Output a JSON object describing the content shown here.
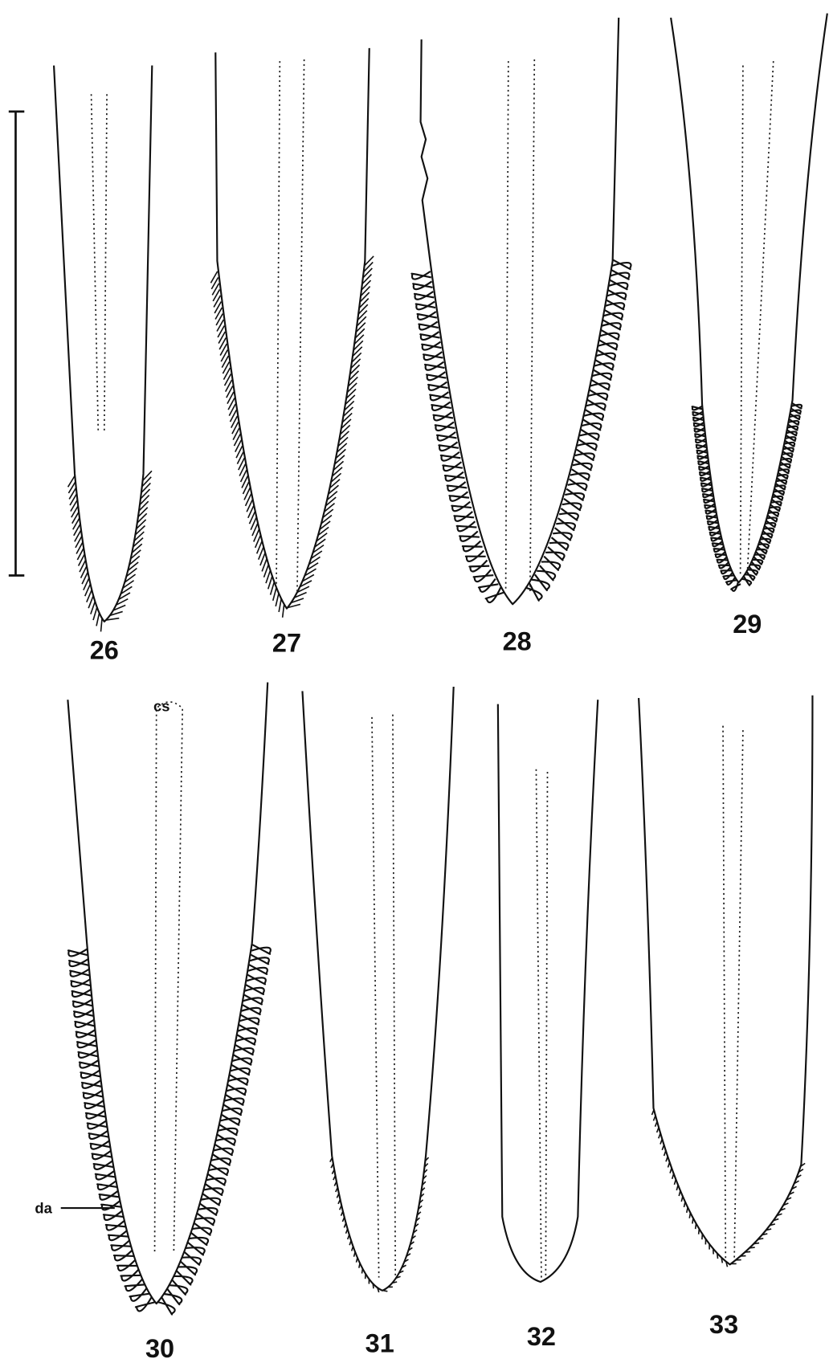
{
  "figures": [
    {
      "label": "26"
    },
    {
      "label": "27"
    },
    {
      "label": "28"
    },
    {
      "label": "29"
    },
    {
      "label": "30"
    },
    {
      "label": "31"
    },
    {
      "label": "32"
    },
    {
      "label": "33"
    }
  ],
  "annotations": {
    "cs": "cs",
    "da": "da"
  }
}
